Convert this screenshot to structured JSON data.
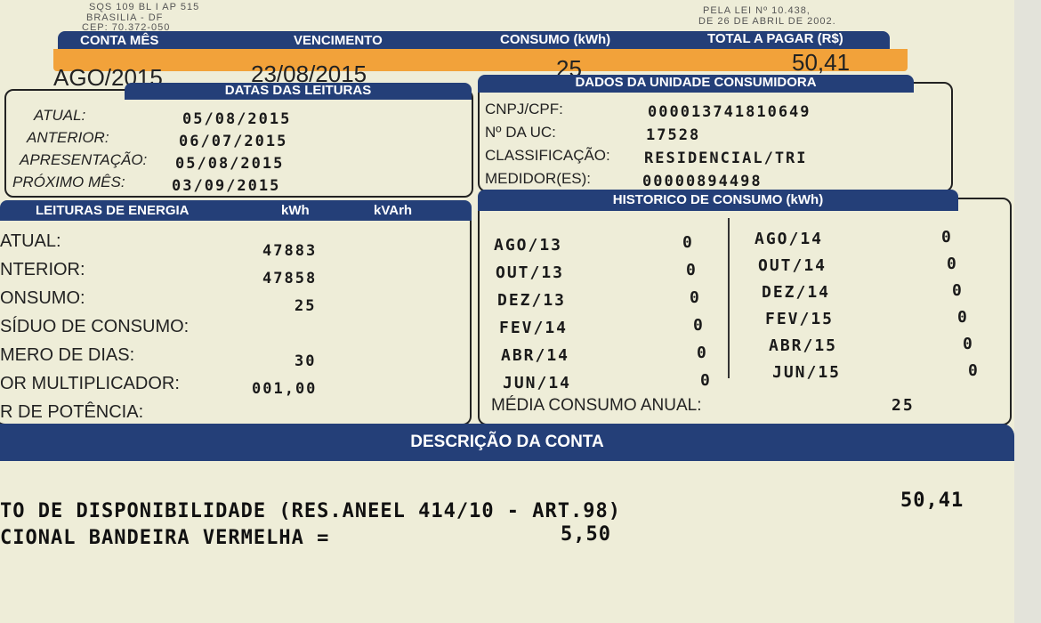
{
  "address": {
    "line1": "SQS 109 BL I AP 515",
    "line2": "BRASILIA - DF",
    "line3": "CEP: 70.372-050"
  },
  "legal": {
    "line1": "PELA LEI Nº 10.438,",
    "line2": "DE 26 DE ABRIL DE 2002."
  },
  "summary": {
    "headers": [
      "CONTA MÊS",
      "VENCIMENTO",
      "CONSUMO (kWh)",
      "TOTAL A PAGAR (R$)"
    ],
    "values": [
      "AGO/2015",
      "23/08/2015",
      "25",
      "50,41"
    ],
    "accent_color": "#f2a23a",
    "header_color": "#243f78"
  },
  "datas_leituras": {
    "title": "DATAS DAS LEITURAS",
    "rows": [
      {
        "label": "ATUAL:",
        "value": "05/08/2015"
      },
      {
        "label": "ANTERIOR:",
        "value": "06/07/2015"
      },
      {
        "label": "APRESENTAÇÃO:",
        "value": "05/08/2015"
      },
      {
        "label": "PRÓXIMO MÊS:",
        "value": "03/09/2015"
      }
    ]
  },
  "dados_unidade": {
    "title": "DADOS DA UNIDADE CONSUMIDORA",
    "rows": [
      {
        "label": "CNPJ/CPF:",
        "value": "000013741810649"
      },
      {
        "label": "Nº DA UC:",
        "value": "17528"
      },
      {
        "label": "CLASSIFICAÇÃO:",
        "value": "RESIDENCIAL/TRI"
      },
      {
        "label": "MEDIDOR(ES):",
        "value": "00000894498"
      }
    ]
  },
  "leituras_energia": {
    "title": "LEITURAS DE ENERGIA",
    "col_kwh": "kWh",
    "col_kvarh": "kVArh",
    "rows": [
      {
        "label": "ATUAL:",
        "value": "47883"
      },
      {
        "label": "NTERIOR:",
        "value": "47858"
      },
      {
        "label": "ONSUMO:",
        "value": "25"
      },
      {
        "label": "SÍDUO DE CONSUMO:",
        "value": ""
      },
      {
        "label": "MERO DE DIAS:",
        "value": "30"
      },
      {
        "label": "OR MULTIPLICADOR:",
        "value": "001,00"
      },
      {
        "label": "R DE POTÊNCIA:",
        "value": ""
      }
    ]
  },
  "historico": {
    "title": "HISTORICO DE CONSUMO (kWh)",
    "left": [
      {
        "m": "AGO/13",
        "v": "0"
      },
      {
        "m": "OUT/13",
        "v": "0"
      },
      {
        "m": "DEZ/13",
        "v": "0"
      },
      {
        "m": "FEV/14",
        "v": "0"
      },
      {
        "m": "ABR/14",
        "v": "0"
      },
      {
        "m": "JUN/14",
        "v": "0"
      }
    ],
    "right": [
      {
        "m": "AGO/14",
        "v": "0"
      },
      {
        "m": "OUT/14",
        "v": "0"
      },
      {
        "m": "DEZ/14",
        "v": "0"
      },
      {
        "m": "FEV/15",
        "v": "0"
      },
      {
        "m": "ABR/15",
        "v": "0"
      },
      {
        "m": "JUN/15",
        "v": "0"
      }
    ],
    "media_label": "MÉDIA CONSUMO ANUAL:",
    "media_value": "25"
  },
  "descricao": {
    "title": "DESCRIÇÃO DA CONTA",
    "line1": "TO DE DISPONIBILIDADE (RES.ANEEL 414/10 - ART.98)",
    "line1_value": "50,41",
    "line2": "CIONAL BANDEIRA VERMELHA =",
    "line2_value": "5,50"
  }
}
